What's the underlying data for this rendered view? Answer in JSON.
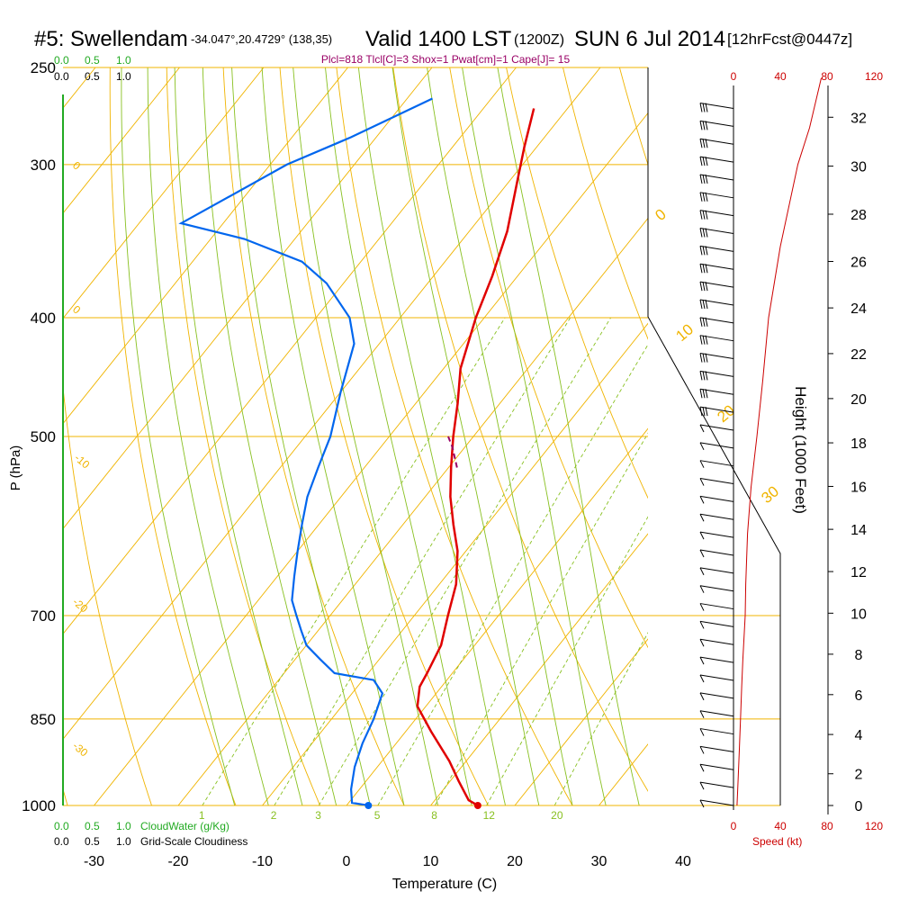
{
  "header": {
    "station": "#5: Swellendam",
    "coords": "-34.047°,20.4729° (138,35)",
    "valid": "Valid 1400 LST",
    "zulu": "(1200Z)",
    "date": "SUN 6 Jul 2014",
    "forecast": "[12hrFcst@0447z]"
  },
  "indices": "Plcl=818 Tlcl[C]=3 Shox=1 Pwat[cm]=1 Cape[J]= 15",
  "colors": {
    "isobar": "#f0b400",
    "dry_adiabat": "#f0b400",
    "moist_adiabat": "#88c020",
    "mixing_ratio": "#88c020",
    "temperature": "#e00000",
    "dewpoint": "#0066ee",
    "cloud_scale": "#22aa22",
    "speed_profile": "#cc0000",
    "parcel": "#990066",
    "indices_text": "#990066"
  },
  "chart_data": {
    "type": "line",
    "title": "#5: Swellendam",
    "xlabel": "Temperature (C)",
    "ylabel": "P (hPa)",
    "right_label": "Height (1000 Feet)",
    "speed_label": "Speed (kt)",
    "x_ticks": [
      -30,
      -20,
      -10,
      0,
      10,
      20,
      30,
      40
    ],
    "p_ticks": [
      250,
      300,
      400,
      500,
      700,
      850,
      1000
    ],
    "height_ticks": [
      0,
      2,
      4,
      6,
      8,
      10,
      12,
      14,
      16,
      18,
      20,
      22,
      24,
      26,
      28,
      30,
      32
    ],
    "speed_ticks": [
      "0",
      "40",
      "80",
      "120"
    ],
    "cloud_scale": {
      "values": [
        "0.0",
        "0.5",
        "1.0"
      ],
      "cloudwater_label": "CloudWater (g/Kg)",
      "cloudiness_label": "Grid-Scale Cloudiness"
    },
    "dry_adiabat_labels": [
      "0",
      "0",
      "-10",
      "-20",
      "-30",
      "0",
      "10",
      "20",
      "30"
    ],
    "mixing_ratio_labels": [
      "1",
      "2",
      "3",
      "5",
      "8",
      "12",
      "20"
    ],
    "series": [
      {
        "name": "Temperature",
        "points": [
          [
            15.6,
            1000
          ],
          [
            14,
            990
          ],
          [
            11,
            955
          ],
          [
            8,
            920
          ],
          [
            3,
            870
          ],
          [
            -1,
            830
          ],
          [
            -2.6,
            800
          ],
          [
            -3,
            780
          ],
          [
            -4,
            740
          ],
          [
            -6,
            700
          ],
          [
            -8,
            660
          ],
          [
            -11,
            620
          ],
          [
            -14,
            590
          ],
          [
            -17,
            560
          ],
          [
            -19.7,
            530
          ],
          [
            -22.4,
            500
          ],
          [
            -25,
            470
          ],
          [
            -28,
            440
          ],
          [
            -31,
            400
          ],
          [
            -33,
            370
          ],
          [
            -35.5,
            340
          ],
          [
            -39,
            310
          ],
          [
            -41.5,
            290
          ],
          [
            -44,
            270
          ]
        ]
      },
      {
        "name": "Dewpoint",
        "points": [
          [
            2.6,
            1000
          ],
          [
            0.4,
            995
          ],
          [
            -1,
            970
          ],
          [
            -2.7,
            930
          ],
          [
            -4,
            890
          ],
          [
            -5,
            850
          ],
          [
            -6.4,
            810
          ],
          [
            -8.7,
            790
          ],
          [
            -14,
            780
          ],
          [
            -17,
            760
          ],
          [
            -20,
            740
          ],
          [
            -22,
            720
          ],
          [
            -24,
            700
          ],
          [
            -26,
            680
          ],
          [
            -28,
            650
          ],
          [
            -30,
            620
          ],
          [
            -32,
            590
          ],
          [
            -34,
            560
          ],
          [
            -35.5,
            530
          ],
          [
            -37,
            500
          ],
          [
            -40,
            460
          ],
          [
            -43,
            420
          ],
          [
            -46,
            400
          ],
          [
            -52,
            375
          ],
          [
            -57,
            360
          ],
          [
            -66,
            345
          ],
          [
            -75,
            335
          ],
          [
            -68,
            300
          ],
          [
            -63,
            285
          ],
          [
            -57,
            265
          ]
        ]
      },
      {
        "name": "Parcel",
        "points": [
          [
            -19,
            530
          ],
          [
            -21.5,
            510
          ],
          [
            -23,
            500
          ]
        ]
      },
      {
        "name": "Wind speed (kt)",
        "points": [
          [
            3,
            1000
          ],
          [
            4,
            950
          ],
          [
            5,
            900
          ],
          [
            6,
            850
          ],
          [
            7,
            800
          ],
          [
            8,
            760
          ],
          [
            10,
            700
          ],
          [
            10.5,
            660
          ],
          [
            12,
            600
          ],
          [
            15,
            550
          ],
          [
            20,
            500
          ],
          [
            25,
            450
          ],
          [
            30,
            400
          ],
          [
            40,
            350
          ],
          [
            55,
            300
          ],
          [
            65,
            280
          ],
          [
            75,
            255
          ]
        ]
      }
    ],
    "barb_count": 40
  }
}
